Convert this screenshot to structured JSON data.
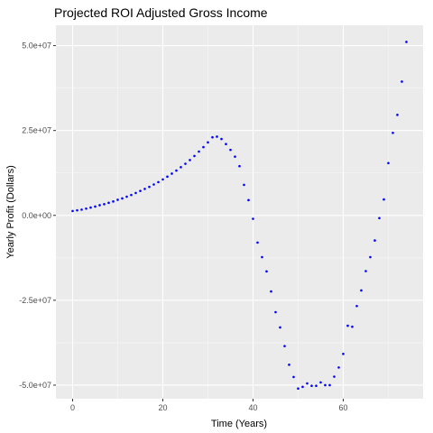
{
  "chart_data": {
    "type": "scatter",
    "title": "Projected ROI Adjusted Gross Income",
    "xlabel": "Time (Years)",
    "ylabel": "Yearly Profit (Dollars)",
    "xlim": [
      -3.7,
      77.7
    ],
    "ylim": [
      -54000000,
      56000000
    ],
    "x_ticks": [
      0,
      20,
      40,
      60
    ],
    "x_tick_labels": [
      "0",
      "20",
      "40",
      "60"
    ],
    "y_ticks": [
      -50000000,
      -25000000,
      0,
      25000000,
      50000000
    ],
    "y_tick_labels": [
      "-5.0e+07",
      "-2.5e+07",
      "0.0e+00",
      "2.5e+07",
      "5.0e+07"
    ],
    "grid": true,
    "legend": "none",
    "colors": {
      "panel_background": "#ebebeb",
      "grid_major": "#ffffff",
      "grid_minor": "#f5f5f5",
      "point": "#0000ff",
      "tick_mark": "#333333"
    },
    "series": [
      {
        "x": [
          0,
          1,
          2,
          3,
          4,
          5,
          6,
          7,
          8,
          9,
          10,
          11,
          12,
          13,
          14,
          15,
          16,
          17,
          18,
          19,
          20,
          21,
          22,
          23,
          24,
          25,
          26,
          27,
          28,
          29,
          30,
          31,
          32,
          33,
          34,
          35,
          36,
          37,
          38,
          39,
          40,
          41,
          42,
          43,
          44,
          45,
          46,
          47,
          48,
          49,
          50,
          51,
          52,
          53,
          54,
          55,
          56,
          57,
          58,
          59,
          60,
          61,
          62,
          63,
          64,
          65,
          66,
          67,
          68,
          69,
          70,
          71,
          72,
          73,
          74
        ],
        "y": [
          1300000,
          1500000,
          1700000,
          2000000,
          2300000,
          2600000,
          3000000,
          3300000,
          3700000,
          4100000,
          4600000,
          5000000,
          5500000,
          6000000,
          6600000,
          7200000,
          7800000,
          8400000,
          9100000,
          9800000,
          10600000,
          11400000,
          12300000,
          13200000,
          14200000,
          15200000,
          16300000,
          17500000,
          18800000,
          20100000,
          21500000,
          23000000,
          23200000,
          22500000,
          21000000,
          19300000,
          17300000,
          14500000,
          9000000,
          4500000,
          -1000000,
          -8000000,
          -12300000,
          -16500000,
          -22400000,
          -28500000,
          -33000000,
          -38500000,
          -44000000,
          -47600000,
          -51000000,
          -50500000,
          -49500000,
          -50200000,
          -50200000,
          -49200000,
          -50000000,
          -50000000,
          -47500000,
          -44800000,
          -40800000,
          -32500000,
          -32800000,
          -26700000,
          -22100000,
          -16400000,
          -12300000,
          -7400000,
          -800000,
          4700000,
          15400000,
          24300000,
          29600000,
          39400000,
          51100000
        ]
      }
    ]
  }
}
